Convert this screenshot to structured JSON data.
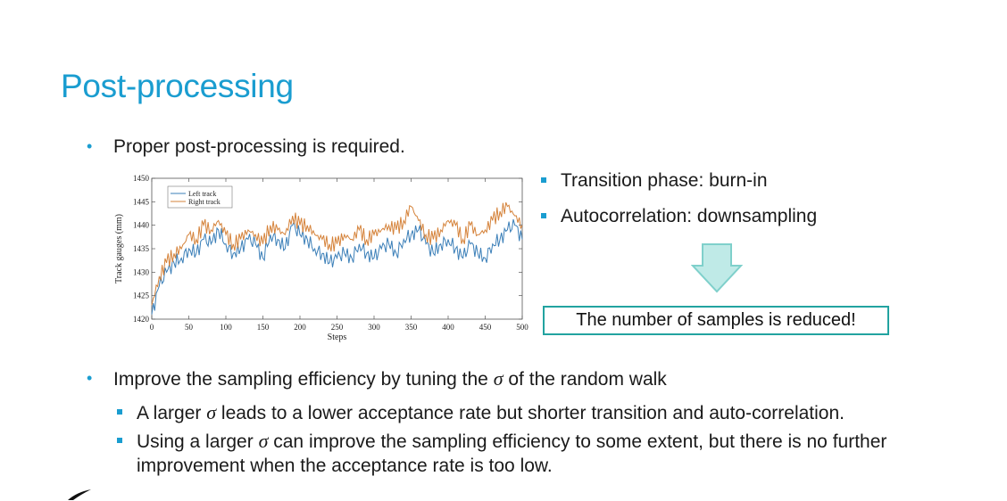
{
  "slide": {
    "title": "Post-processing",
    "bullet1": "Proper post-processing is required.",
    "right_items": [
      "Transition phase: burn-in",
      "Autocorrelation: downsampling"
    ],
    "result_text": "The number of samples is reduced!",
    "bullet2_pre": "Improve the sampling efficiency by tuning the ",
    "bullet2_sigma": "σ",
    "bullet2_post": " of the random walk",
    "sub1_pre": "A larger ",
    "sub1_sigma": "σ",
    "sub1_post": " leads to a lower acceptance rate but shorter transition and auto-correlation.",
    "sub2_pre": "Using a larger ",
    "sub2_sigma": "σ",
    "sub2_post": " can improve the sampling efficiency to some extent, but there is no further",
    "sub2_line2": "improvement when the acceptance rate is too low."
  },
  "colors": {
    "accent": "#1a9dd0",
    "box_border": "#22a3a0",
    "left_track": "#3b7fb8",
    "right_track": "#d5833b",
    "arrow_fill": "#bfeae7",
    "arrow_stroke": "#7fd0cb"
  },
  "chart_data": {
    "type": "line",
    "xlabel": "Steps",
    "ylabel": "Track gauges (mm)",
    "xlim": [
      0,
      500
    ],
    "ylim": [
      1420,
      1450
    ],
    "xticks": [
      0,
      50,
      100,
      150,
      200,
      250,
      300,
      350,
      400,
      450,
      500
    ],
    "yticks": [
      1420,
      1425,
      1430,
      1435,
      1440,
      1445,
      1450
    ],
    "legend_position": "top-left",
    "grid": false,
    "series": [
      {
        "name": "Left track",
        "x": [
          0,
          10,
          20,
          30,
          40,
          50,
          60,
          70,
          80,
          90,
          100,
          110,
          120,
          130,
          140,
          150,
          160,
          170,
          180,
          190,
          200,
          210,
          220,
          230,
          240,
          250,
          260,
          270,
          280,
          290,
          300,
          310,
          320,
          330,
          340,
          350,
          360,
          370,
          380,
          390,
          400,
          410,
          420,
          430,
          440,
          450,
          460,
          470,
          480,
          490,
          500
        ],
        "values": [
          1421,
          1427,
          1430,
          1432,
          1433,
          1435,
          1434,
          1437,
          1436,
          1439,
          1436,
          1434,
          1435,
          1437,
          1436,
          1433,
          1438,
          1437,
          1435,
          1440,
          1438,
          1437,
          1435,
          1434,
          1432,
          1433,
          1434,
          1433,
          1436,
          1434,
          1433,
          1435,
          1436,
          1434,
          1437,
          1438,
          1439,
          1436,
          1434,
          1436,
          1437,
          1435,
          1433,
          1436,
          1434,
          1433,
          1436,
          1437,
          1439,
          1440,
          1437
        ]
      },
      {
        "name": "Right track",
        "x": [
          0,
          10,
          20,
          30,
          40,
          50,
          60,
          70,
          80,
          90,
          100,
          110,
          120,
          130,
          140,
          150,
          160,
          170,
          180,
          190,
          200,
          210,
          220,
          230,
          240,
          250,
          260,
          270,
          280,
          290,
          300,
          310,
          320,
          330,
          340,
          350,
          360,
          370,
          380,
          390,
          400,
          410,
          420,
          430,
          440,
          450,
          460,
          470,
          480,
          490,
          500
        ],
        "values": [
          1423,
          1429,
          1432,
          1434,
          1435,
          1438,
          1437,
          1440,
          1439,
          1441,
          1438,
          1436,
          1437,
          1439,
          1438,
          1436,
          1440,
          1439,
          1438,
          1442,
          1440,
          1440,
          1438,
          1437,
          1436,
          1436,
          1438,
          1437,
          1439,
          1437,
          1438,
          1439,
          1440,
          1439,
          1441,
          1444,
          1441,
          1438,
          1437,
          1439,
          1441,
          1440,
          1437,
          1440,
          1438,
          1439,
          1441,
          1443,
          1444,
          1442,
          1440
        ]
      }
    ]
  }
}
